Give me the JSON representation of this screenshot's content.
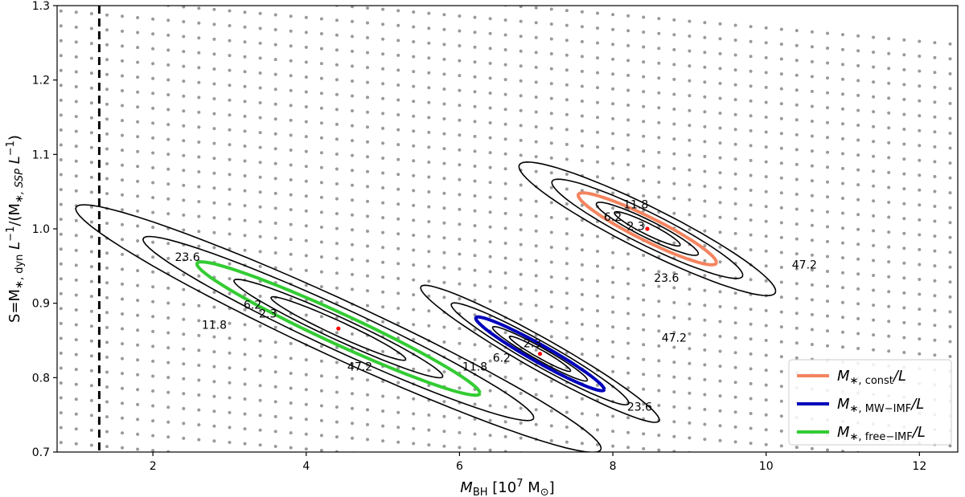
{
  "chart_data": {
    "type": "contour",
    "xlabel": {
      "main": "M",
      "sub": "BH",
      "unit": "[10",
      "exp": "7",
      "unit2": " M",
      "sun": "⊙",
      "close": "]"
    },
    "ylabel": {
      "text": "S=M",
      "sub1": "∗, dyn",
      "mid": " L",
      "sup1": "−1",
      "slash": "/(M",
      "sub2": "∗, SSP",
      "end": " L",
      "sup2": "−1",
      "close": ")"
    },
    "xlim": [
      0.75,
      12.5
    ],
    "ylim": [
      0.7,
      1.3
    ],
    "x_ticks": [
      2,
      4,
      6,
      8,
      10,
      12
    ],
    "x_tick_labels": [
      "2",
      "4",
      "6",
      "8",
      "10",
      "12"
    ],
    "y_ticks": [
      0.7,
      0.8,
      0.9,
      1.0,
      1.1,
      1.2,
      1.3
    ],
    "y_tick_labels": [
      "0.7",
      "0.8",
      "0.9",
      "1.0",
      "1.1",
      "1.2",
      "1.3"
    ],
    "vline_x": 1.3,
    "contour_levels": [
      "2.3",
      "6.2",
      "11.8",
      "23.6",
      "47.2"
    ],
    "series": [
      {
        "name": {
          "main": "M",
          "sub": "∗, const",
          "tail": "/L"
        },
        "color": "#f4845f",
        "center": [
          8.45,
          1.0
        ],
        "contour_labels": [
          {
            "text": "2.3",
            "x": 8.3,
            "y": 1.004
          },
          {
            "text": "6.2",
            "x": 8.0,
            "y": 1.016
          },
          {
            "text": "11.8",
            "x": 8.3,
            "y": 1.033
          },
          {
            "text": "23.6",
            "x": 8.7,
            "y": 0.934
          },
          {
            "text": "47.2",
            "x": 10.5,
            "y": 0.952
          }
        ]
      },
      {
        "name": {
          "main": "M",
          "sub": "∗, MW−IMF",
          "tail": "/L"
        },
        "color": "#0000bb",
        "center": [
          7.05,
          0.832
        ],
        "contour_labels": [
          {
            "text": "2.3",
            "x": 6.95,
            "y": 0.846
          },
          {
            "text": "6.2",
            "x": 6.55,
            "y": 0.827
          },
          {
            "text": "11.8",
            "x": 6.2,
            "y": 0.815
          },
          {
            "text": "23.6",
            "x": 8.35,
            "y": 0.761
          },
          {
            "text": "47.2",
            "x": 8.8,
            "y": 0.854
          }
        ]
      },
      {
        "name": {
          "main": "M",
          "sub": "∗, free−IMF",
          "tail": "/L"
        },
        "color": "#33cc33",
        "center": [
          4.42,
          0.866
        ],
        "contour_labels": [
          {
            "text": "2.3",
            "x": 3.5,
            "y": 0.886
          },
          {
            "text": "6.2",
            "x": 3.3,
            "y": 0.898
          },
          {
            "text": "11.8",
            "x": 2.8,
            "y": 0.871
          },
          {
            "text": "23.6",
            "x": 2.45,
            "y": 0.962
          },
          {
            "text": "47.2",
            "x": 4.7,
            "y": 0.815
          }
        ]
      }
    ],
    "legend_position": "lower-right",
    "grid": false
  }
}
